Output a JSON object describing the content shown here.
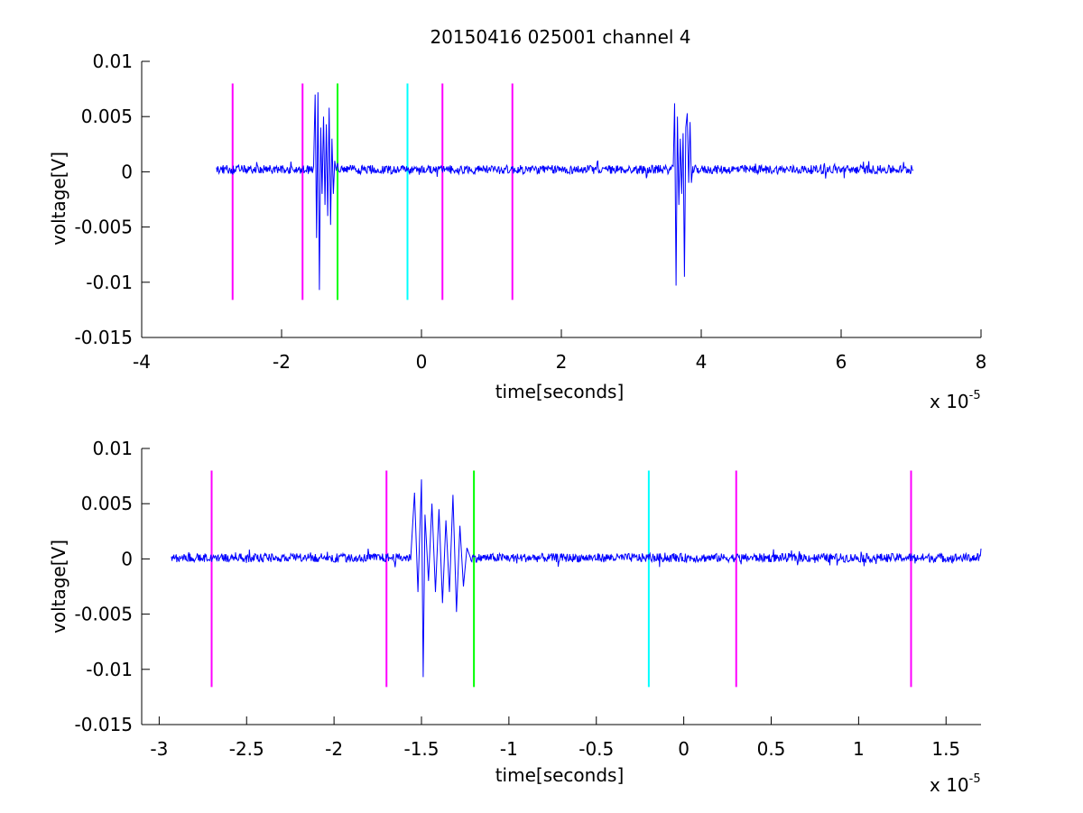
{
  "chart_data": [
    {
      "type": "line",
      "title": "20150416 025001 channel 4",
      "xlabel": "time[seconds]",
      "ylabel": "voltage[V]",
      "x_scale_label": "x 10",
      "x_scale_exp": "-5",
      "xlim": [
        -4,
        8
      ],
      "ylim": [
        -0.015,
        0.01
      ],
      "xticks": [
        -4,
        -2,
        0,
        2,
        4,
        6,
        8
      ],
      "xtick_labels": [
        "-4",
        "-2",
        "0",
        "2",
        "4",
        "6",
        "8"
      ],
      "yticks": [
        0.01,
        0.005,
        0,
        -0.005,
        -0.01,
        -0.015
      ],
      "ytick_labels": [
        "0.01",
        "0.005",
        "0",
        "-0.005",
        "-0.01",
        "-0.015"
      ],
      "grid": false,
      "signal_color": "#0000ff",
      "signal": {
        "x_range": [
          -2.93,
          7.03
        ],
        "baseline": 0.0002,
        "noise_amplitude": 0.0004,
        "bursts": [
          {
            "x": [
              -1.54,
              -1.52,
              -1.5,
              -1.48,
              -1.46,
              -1.44,
              -1.42,
              -1.4,
              -1.38,
              -1.36,
              -1.34,
              -1.32,
              -1.3,
              -1.28,
              -1.26,
              -1.24,
              -1.22
            ],
            "y": [
              0.001,
              0.007,
              -0.006,
              0.0072,
              -0.0107,
              0.004,
              -0.002,
              0.005,
              -0.003,
              0.0043,
              -0.004,
              0.0058,
              -0.0048,
              0.003,
              -0.002,
              0.001,
              0.0001
            ]
          },
          {
            "x": [
              3.6,
              3.62,
              3.64,
              3.66,
              3.68,
              3.7,
              3.72,
              3.74,
              3.76,
              3.78,
              3.8,
              3.82,
              3.84,
              3.86,
              3.88
            ],
            "y": [
              0.0005,
              0.0062,
              -0.0103,
              0.005,
              -0.003,
              0.003,
              -0.002,
              0.0035,
              -0.0095,
              0.004,
              0.0053,
              -0.001,
              0.0045,
              -0.001,
              0.0005
            ]
          }
        ]
      },
      "markers": [
        {
          "x": -2.7,
          "color": "#ff00ff"
        },
        {
          "x": -1.7,
          "color": "#ff00ff"
        },
        {
          "x": -1.2,
          "color": "#00ff00"
        },
        {
          "x": -0.2,
          "color": "#00ffff"
        },
        {
          "x": 0.3,
          "color": "#ff00ff"
        },
        {
          "x": 1.3,
          "color": "#ff00ff"
        }
      ],
      "marker_range": [
        -0.0116,
        0.008
      ]
    },
    {
      "type": "line",
      "xlabel": "time[seconds]",
      "ylabel": "voltage[V]",
      "x_scale_label": "x 10",
      "x_scale_exp": "-5",
      "xlim": [
        -3.1,
        1.7
      ],
      "ylim": [
        -0.015,
        0.01
      ],
      "xticks": [
        -3,
        -2.5,
        -2,
        -1.5,
        -1,
        -0.5,
        0,
        0.5,
        1,
        1.5
      ],
      "xtick_labels": [
        "-3",
        "-2.5",
        "-2",
        "-1.5",
        "-1",
        "-0.5",
        "0",
        "0.5",
        "1",
        "1.5"
      ],
      "yticks": [
        0.01,
        0.005,
        0,
        -0.005,
        -0.01,
        -0.015
      ],
      "ytick_labels": [
        "0.01",
        "0.005",
        "0",
        "-0.005",
        "-0.01",
        "-0.015"
      ],
      "grid": false,
      "signal_color": "#0000ff",
      "signal": {
        "x_range": [
          -2.93,
          1.7
        ],
        "baseline": 0.0001,
        "noise_amplitude": 0.0004,
        "bursts": [
          {
            "x": [
              -1.56,
              -1.54,
              -1.52,
              -1.5,
              -1.49,
              -1.48,
              -1.46,
              -1.44,
              -1.42,
              -1.4,
              -1.38,
              -1.36,
              -1.34,
              -1.32,
              -1.3,
              -1.28,
              -1.26,
              -1.24,
              -1.22
            ],
            "y": [
              0.0005,
              0.006,
              -0.003,
              0.0072,
              -0.0107,
              0.004,
              -0.002,
              0.005,
              -0.003,
              0.0045,
              -0.004,
              0.0035,
              -0.003,
              0.0058,
              -0.0048,
              0.003,
              -0.0025,
              0.001,
              0.0001
            ]
          }
        ]
      },
      "markers": [
        {
          "x": -2.7,
          "color": "#ff00ff"
        },
        {
          "x": -1.7,
          "color": "#ff00ff"
        },
        {
          "x": -1.2,
          "color": "#00ff00"
        },
        {
          "x": -0.2,
          "color": "#00ffff"
        },
        {
          "x": 0.3,
          "color": "#ff00ff"
        },
        {
          "x": 1.3,
          "color": "#ff00ff"
        }
      ],
      "marker_range": [
        -0.0116,
        0.008
      ]
    }
  ]
}
